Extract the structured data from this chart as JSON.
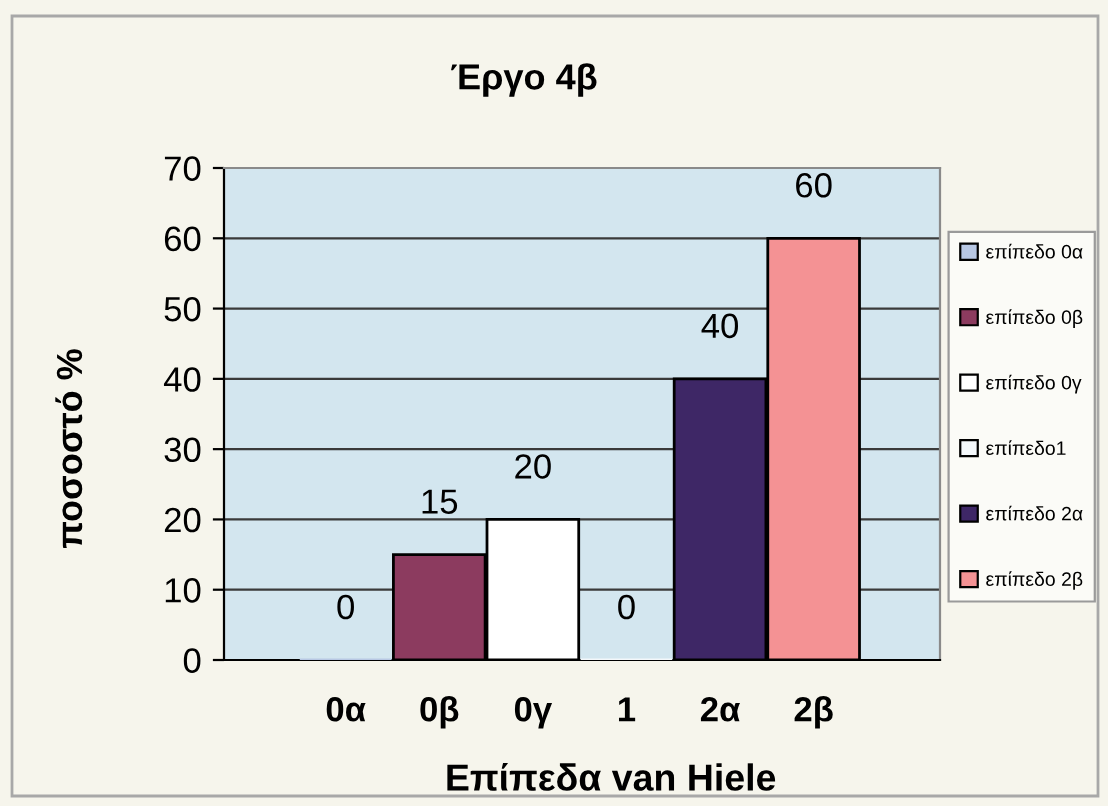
{
  "chart_data": {
    "type": "bar",
    "title": "Έργο 4β",
    "xlabel": "Επίπεδα van Hiele",
    "ylabel": "ποσοστό %",
    "categories": [
      "0α",
      "0β",
      "0γ",
      "1",
      "2α",
      "2β"
    ],
    "series": [
      {
        "name": "επίπεδο 0α",
        "color": "#b8c8e4",
        "values": [
          0,
          null,
          null,
          null,
          null,
          null
        ]
      },
      {
        "name": "επίπεδο 0β",
        "color": "#8c3b5f",
        "values": [
          null,
          15,
          null,
          null,
          null,
          null
        ]
      },
      {
        "name": "επίπεδο 0γ",
        "color": "#ffffff",
        "values": [
          null,
          null,
          20,
          null,
          null,
          null
        ]
      },
      {
        "name": "επίπεδο1",
        "color": "#f4f8fb",
        "values": [
          null,
          null,
          null,
          0,
          null,
          null
        ]
      },
      {
        "name": "επίπεδο 2α",
        "color": "#3e2766",
        "values": [
          null,
          null,
          null,
          null,
          40,
          null
        ]
      },
      {
        "name": "επίπεδο 2β",
        "color": "#f49294",
        "values": [
          null,
          null,
          null,
          null,
          null,
          60
        ]
      }
    ],
    "ylim": [
      0,
      70
    ],
    "yticks": [
      0,
      10,
      20,
      30,
      40,
      50,
      60,
      70
    ],
    "grid": "y",
    "legend": "right",
    "data_labels": true
  }
}
